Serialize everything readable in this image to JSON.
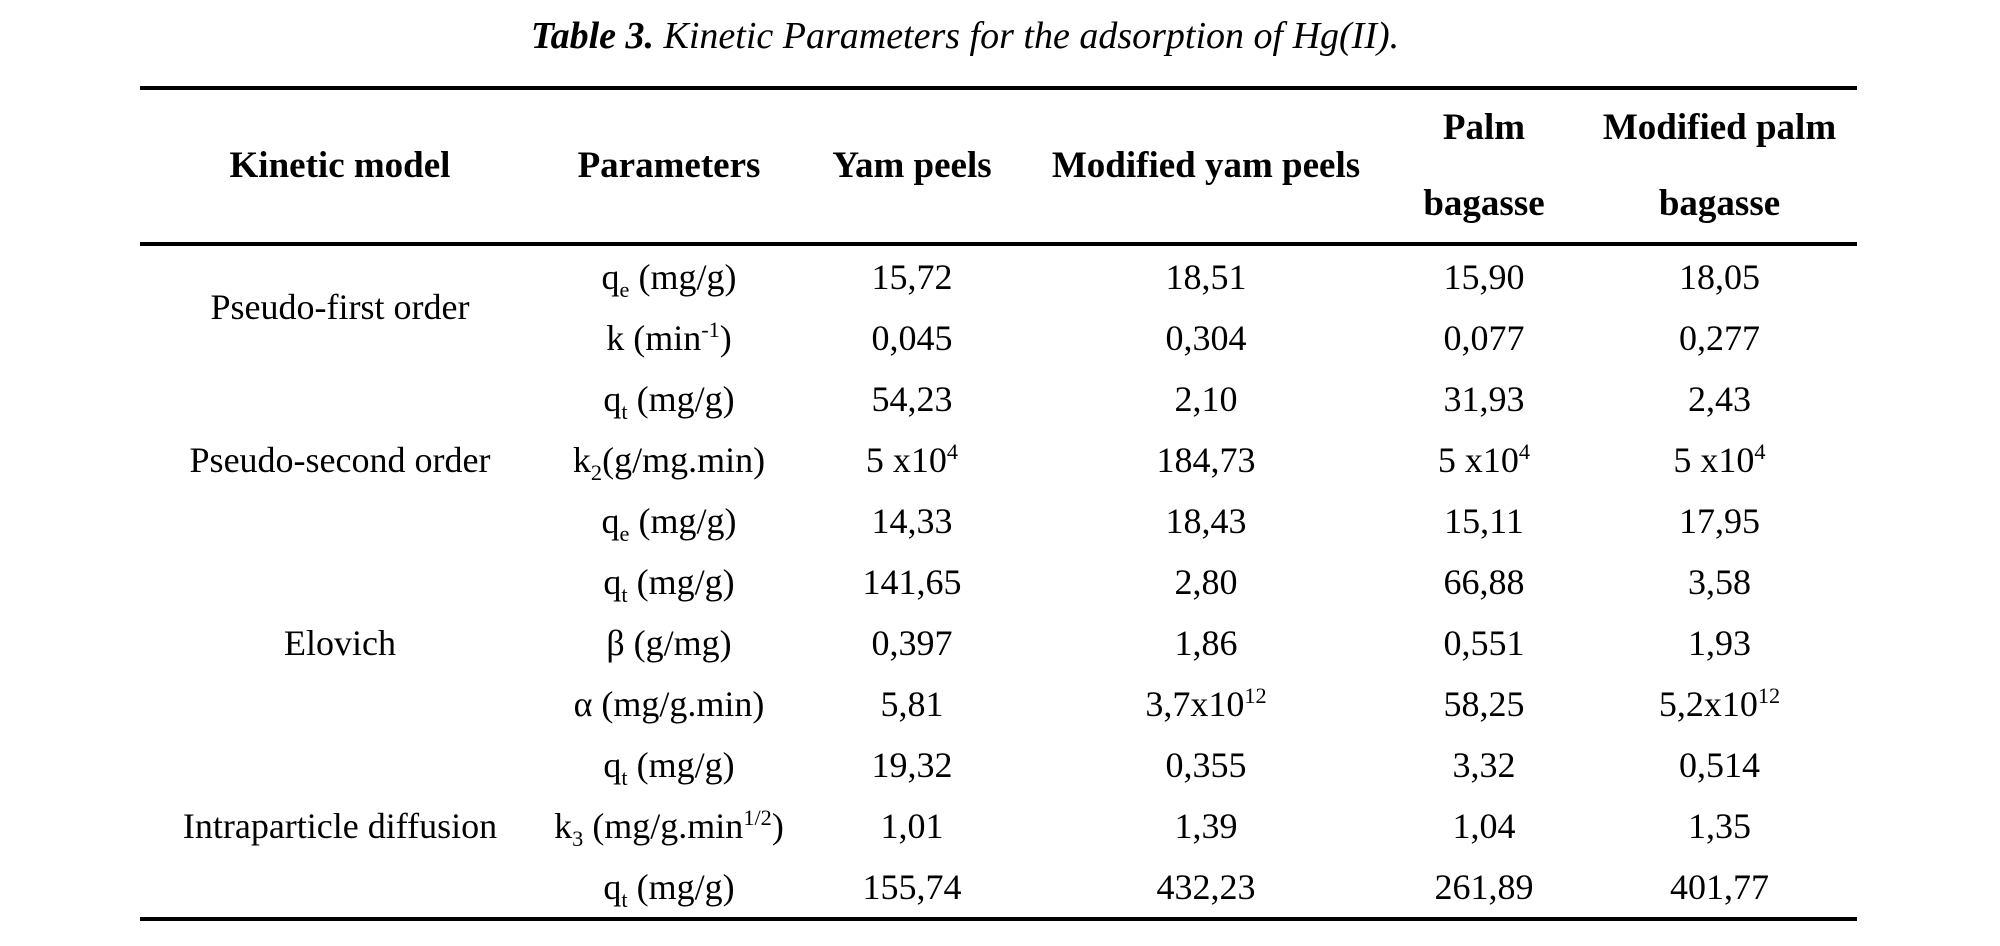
{
  "caption": {
    "label": "Table 3.",
    "text": "Kinetic Parameters for the adsorption of Hg(II)."
  },
  "colors": {
    "background": "#ffffff",
    "text": "#000000",
    "rule": "#000000"
  },
  "table": {
    "columns": [
      {
        "label": "Kinetic model"
      },
      {
        "label": "Parameters"
      },
      {
        "label": "Yam peels"
      },
      {
        "label": "Modified yam peels"
      },
      {
        "line1": "Palm",
        "line2": "bagasse"
      },
      {
        "line1": "Modified palm",
        "line2": "bagasse"
      }
    ],
    "groups": [
      {
        "model": "Pseudo-first order",
        "rows": [
          {
            "param": [
              {
                "t": "q"
              },
              {
                "t": "e",
                "s": "sub"
              },
              {
                "t": " (mg/g)"
              }
            ],
            "values": [
              "15,72",
              "18,51",
              "15,90",
              "18,05"
            ]
          },
          {
            "param": [
              {
                "t": "k (min"
              },
              {
                "t": "-1",
                "s": "sup"
              },
              {
                "t": ")"
              }
            ],
            "values": [
              "0,045",
              "0,304",
              "0,077",
              "0,277"
            ]
          }
        ]
      },
      {
        "model": "Pseudo-second order",
        "rows": [
          {
            "param": [
              {
                "t": "q"
              },
              {
                "t": "t",
                "s": "sub"
              },
              {
                "t": " (mg/g)"
              }
            ],
            "values": [
              "54,23",
              "2,10",
              "31,93",
              "2,43"
            ]
          },
          {
            "param": [
              {
                "t": "k"
              },
              {
                "t": "2",
                "s": "sub"
              },
              {
                "t": "(g/mg.min)"
              }
            ],
            "values": [
              [
                {
                  "t": "5 x10"
                },
                {
                  "t": "4",
                  "s": "sup"
                }
              ],
              "184,73",
              [
                {
                  "t": "5 x10"
                },
                {
                  "t": "4",
                  "s": "sup"
                }
              ],
              [
                {
                  "t": "5 x10"
                },
                {
                  "t": "4",
                  "s": "sup"
                }
              ]
            ]
          },
          {
            "param": [
              {
                "t": "q"
              },
              {
                "t": "e",
                "s": "sub"
              },
              {
                "t": " (mg/g)"
              }
            ],
            "values": [
              "14,33",
              "18,43",
              "15,11",
              "17,95"
            ]
          }
        ]
      },
      {
        "model": "Elovich",
        "rows": [
          {
            "param": [
              {
                "t": "q"
              },
              {
                "t": "t",
                "s": "sub"
              },
              {
                "t": " (mg/g)"
              }
            ],
            "values": [
              "141,65",
              "2,80",
              "66,88",
              "3,58"
            ]
          },
          {
            "param": [
              {
                "t": "β (g/mg)"
              }
            ],
            "values": [
              "0,397",
              "1,86",
              "0,551",
              "1,93"
            ]
          },
          {
            "param": [
              {
                "t": "α (mg/g.min)"
              }
            ],
            "values": [
              "5,81",
              [
                {
                  "t": "3,7x10"
                },
                {
                  "t": "12",
                  "s": "sup"
                }
              ],
              "58,25",
              [
                {
                  "t": "5,2x10"
                },
                {
                  "t": "12",
                  "s": "sup"
                }
              ]
            ]
          }
        ]
      },
      {
        "model": "Intraparticle diffusion",
        "rows": [
          {
            "param": [
              {
                "t": "q"
              },
              {
                "t": "t",
                "s": "sub"
              },
              {
                "t": " (mg/g)"
              }
            ],
            "values": [
              "19,32",
              "0,355",
              "3,32",
              "0,514"
            ]
          },
          {
            "param": [
              {
                "t": "k"
              },
              {
                "t": "3",
                "s": "sub"
              },
              {
                "t": " (mg/g.min"
              },
              {
                "t": "1/2",
                "s": "sup"
              },
              {
                "t": ")"
              }
            ],
            "values": [
              "1,01",
              "1,39",
              "1,04",
              "1,35"
            ]
          },
          {
            "param": [
              {
                "t": "q"
              },
              {
                "t": "t",
                "s": "sub"
              },
              {
                "t": " (mg/g)"
              }
            ],
            "values": [
              "155,74",
              "432,23",
              "261,89",
              "401,77"
            ]
          }
        ]
      }
    ]
  }
}
